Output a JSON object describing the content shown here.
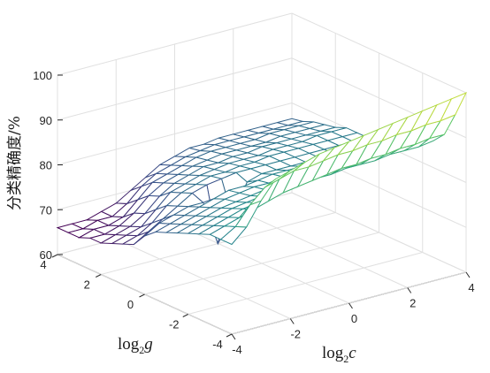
{
  "chart_data": {
    "type": "surface",
    "title": "",
    "xlabel": {
      "base": "log",
      "sub": "2",
      "var": "c"
    },
    "ylabel": {
      "base": "log",
      "sub": "2",
      "var": "g"
    },
    "zlabel": "分类精确度/%",
    "xlim": [
      -4,
      4
    ],
    "ylim": [
      -4,
      4
    ],
    "zlim": [
      60,
      100
    ],
    "x_ticks": [
      "-4",
      "-2",
      "0",
      "2",
      "4"
    ],
    "y_ticks": [
      "-4",
      "-2",
      "0",
      "2",
      "4"
    ],
    "z_ticks": [
      "60",
      "70",
      "80",
      "90",
      "100"
    ],
    "grid": true,
    "colormap": "viridis",
    "x": [
      -4,
      -3.5,
      -3,
      -2.5,
      -2,
      -1.5,
      -1,
      -0.5,
      0,
      0.5,
      1,
      1.5,
      2,
      2.5,
      3,
      3.5,
      4
    ],
    "y": [
      -4,
      -3.5,
      -3,
      -2.5,
      -2,
      -1.5,
      -1,
      -0.5,
      0,
      0.5,
      1,
      1.5,
      2,
      2.5,
      3,
      3.5,
      4
    ],
    "z_description_rows_by_y": "z[j][i] for y[j], x[i]",
    "z": [
      [
        80,
        83,
        88,
        92,
        93,
        94,
        95,
        95.5,
        96,
        96.5,
        97,
        97.5,
        98,
        98.5,
        99,
        99.5,
        100
      ],
      [
        80,
        82,
        86,
        89,
        90,
        91,
        91,
        91.5,
        92,
        92,
        92.5,
        92.5,
        93,
        93,
        93.5,
        93.5,
        94
      ],
      [
        80,
        81,
        82,
        83,
        84,
        85,
        85.5,
        86,
        86.5,
        87,
        87,
        87.5,
        87.5,
        88,
        88,
        88.5,
        88.5
      ],
      [
        79,
        80,
        81,
        82,
        82.5,
        83,
        83.5,
        84,
        84.5,
        84.5,
        85,
        85,
        85,
        85.5,
        85.5,
        85.5,
        86
      ],
      [
        78,
        79,
        80,
        81,
        81.5,
        82,
        82.5,
        82.5,
        83,
        83,
        83.5,
        83.5,
        83.5,
        84,
        84,
        84,
        84
      ],
      [
        77,
        78,
        79,
        80,
        80.5,
        81,
        81.5,
        82,
        82,
        82.5,
        82.5,
        82.5,
        83,
        83,
        83,
        83,
        83
      ],
      [
        76,
        77,
        78,
        79,
        80,
        80.5,
        81,
        81,
        81.5,
        81.5,
        82,
        82,
        82,
        82,
        82,
        82,
        82
      ],
      [
        75,
        76,
        77,
        78,
        79,
        80,
        80,
        80.5,
        81,
        81,
        81,
        81,
        81,
        81,
        81,
        81,
        81
      ],
      [
        73,
        75,
        76,
        77,
        77,
        67,
        72,
        79,
        80,
        80,
        80,
        80,
        80,
        80,
        80,
        80,
        80
      ],
      [
        70,
        72,
        74,
        76,
        78,
        79,
        79.5,
        80,
        80,
        80,
        80,
        80,
        80,
        80,
        80,
        80,
        80
      ],
      [
        69,
        70,
        72,
        75,
        77,
        78,
        79,
        79,
        79.5,
        79.5,
        80,
        80,
        80,
        80,
        80,
        80,
        80
      ],
      [
        68,
        69,
        70,
        73,
        76,
        77,
        78,
        78.5,
        79,
        79,
        79,
        79.5,
        79.5,
        79.5,
        80,
        80,
        80
      ],
      [
        67,
        68,
        69,
        71,
        74,
        76,
        77,
        78,
        78,
        78.5,
        78.5,
        79,
        79,
        79,
        79,
        79,
        79
      ],
      [
        67,
        67,
        68,
        70,
        73,
        75,
        76,
        77,
        77.5,
        78,
        78,
        78,
        78,
        78.5,
        78.5,
        78.5,
        78.5
      ],
      [
        66,
        67,
        67,
        68,
        71,
        74,
        75,
        76,
        77,
        77.5,
        77.5,
        77.5,
        77.5,
        78,
        78,
        78,
        78
      ],
      [
        66,
        66,
        67,
        67,
        69,
        72,
        74,
        75,
        76,
        76.5,
        77,
        77,
        77,
        77,
        77,
        77,
        77
      ],
      [
        66,
        66,
        66,
        67,
        68,
        70,
        72,
        74,
        75,
        76,
        76,
        76.5,
        76.5,
        76.5,
        76.5,
        76.5,
        76.5
      ]
    ]
  }
}
